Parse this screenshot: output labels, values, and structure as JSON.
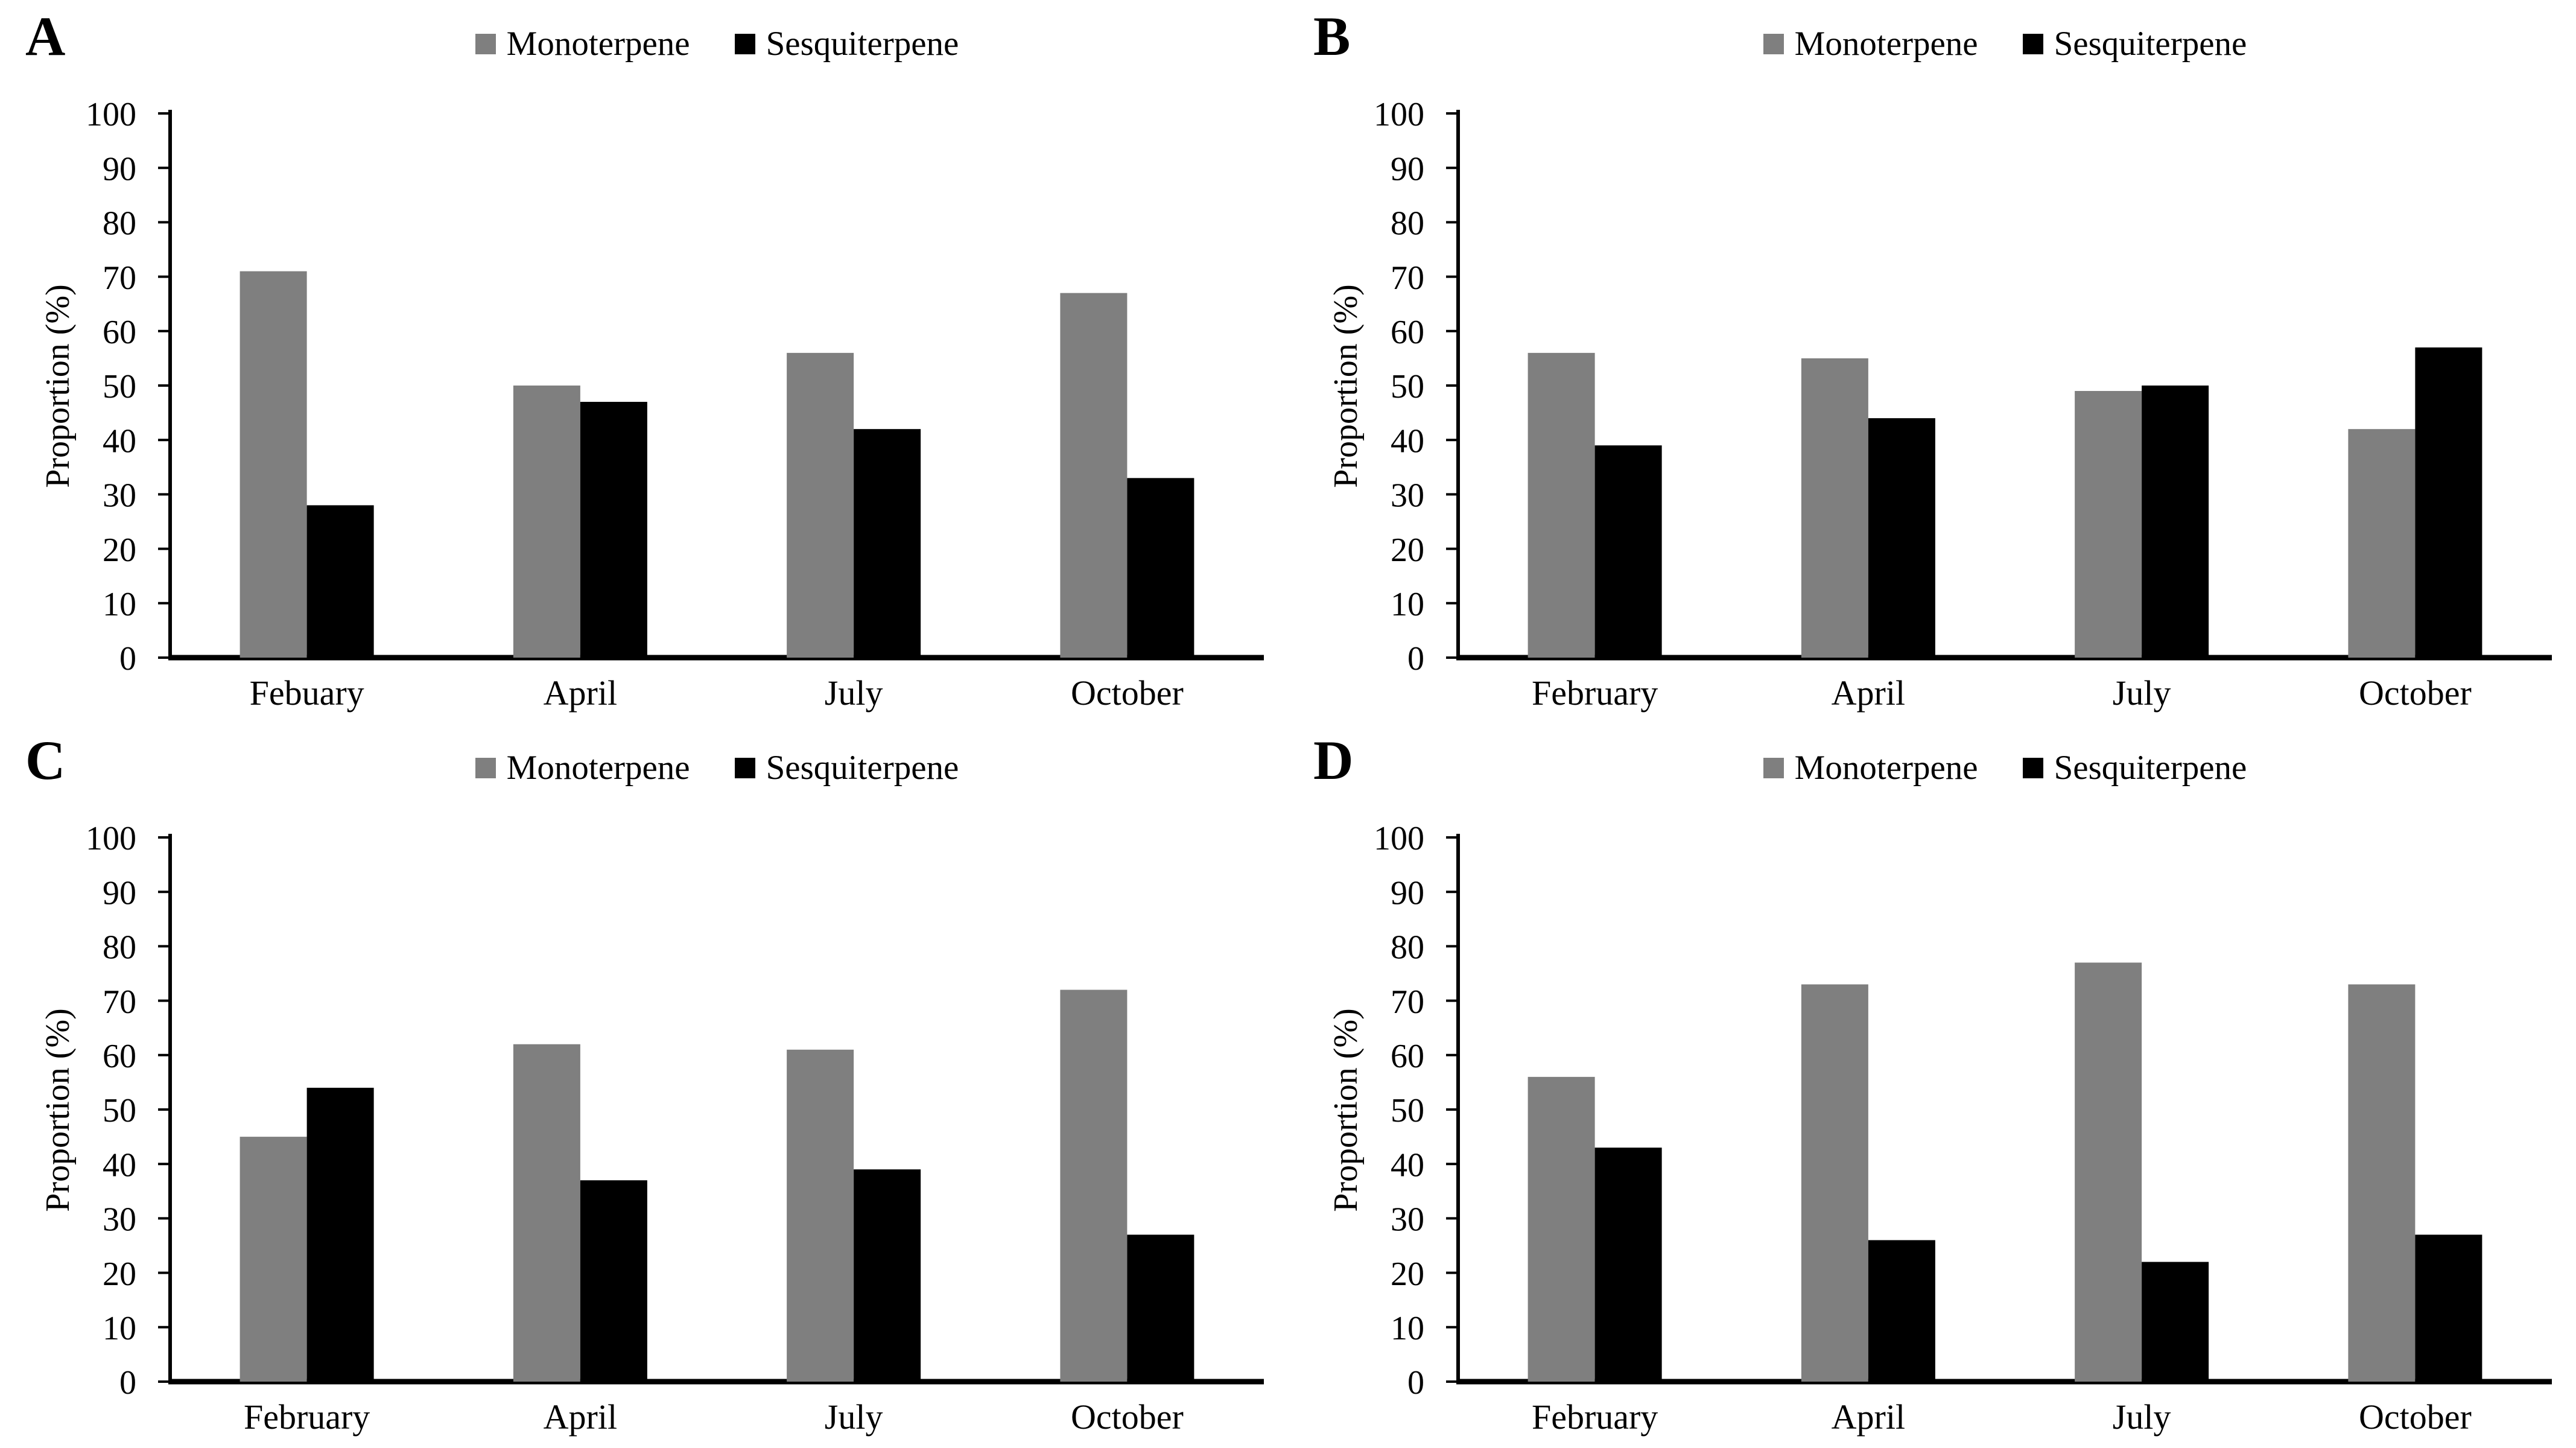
{
  "figure": {
    "y_axis_title": "Proportion (%)",
    "series_colors": {
      "monoterpene": "#7f7f7f",
      "sesquiterpene": "#000000"
    }
  },
  "chart_data": [
    {
      "type": "bar",
      "panel_label": "A",
      "title": "",
      "categories": [
        "Febuary",
        "April",
        "July",
        "October"
      ],
      "series": [
        {
          "name": "Monoterpene",
          "color": "#7f7f7f",
          "values": [
            71,
            50,
            56,
            67
          ]
        },
        {
          "name": "Sesquiterpene",
          "color": "#000000",
          "values": [
            28,
            47,
            42,
            33
          ]
        }
      ],
      "xlabel": "",
      "ylabel": "Proportion (%)",
      "ylim": [
        0,
        100
      ],
      "yticks": [
        0,
        10,
        20,
        30,
        40,
        50,
        60,
        70,
        80,
        90,
        100
      ],
      "grid": false,
      "legend_position": "top-center"
    },
    {
      "type": "bar",
      "panel_label": "B",
      "title": "",
      "categories": [
        "February",
        "April",
        "July",
        "October"
      ],
      "series": [
        {
          "name": "Monoterpene",
          "color": "#7f7f7f",
          "values": [
            56,
            55,
            49,
            42
          ]
        },
        {
          "name": "Sesquiterpene",
          "color": "#000000",
          "values": [
            39,
            44,
            50,
            57
          ]
        }
      ],
      "xlabel": "",
      "ylabel": "Proportion (%)",
      "ylim": [
        0,
        100
      ],
      "yticks": [
        0,
        10,
        20,
        30,
        40,
        50,
        60,
        70,
        80,
        90,
        100
      ],
      "grid": false,
      "legend_position": "top-center"
    },
    {
      "type": "bar",
      "panel_label": "C",
      "title": "",
      "categories": [
        "February",
        "April",
        "July",
        "October"
      ],
      "series": [
        {
          "name": "Monoterpene",
          "color": "#7f7f7f",
          "values": [
            45,
            62,
            61,
            72
          ]
        },
        {
          "name": "Sesquiterpene",
          "color": "#000000",
          "values": [
            54,
            37,
            39,
            27
          ]
        }
      ],
      "xlabel": "",
      "ylabel": "Proportion (%)",
      "ylim": [
        0,
        100
      ],
      "yticks": [
        0,
        10,
        20,
        30,
        40,
        50,
        60,
        70,
        80,
        90,
        100
      ],
      "grid": false,
      "legend_position": "top-center"
    },
    {
      "type": "bar",
      "panel_label": "D",
      "title": "",
      "categories": [
        "February",
        "April",
        "July",
        "October"
      ],
      "series": [
        {
          "name": "Monoterpene",
          "color": "#7f7f7f",
          "values": [
            56,
            73,
            77,
            73
          ]
        },
        {
          "name": "Sesquiterpene",
          "color": "#000000",
          "values": [
            43,
            26,
            22,
            27
          ]
        }
      ],
      "xlabel": "",
      "ylabel": "Proportion (%)",
      "ylim": [
        0,
        100
      ],
      "yticks": [
        0,
        10,
        20,
        30,
        40,
        50,
        60,
        70,
        80,
        90,
        100
      ],
      "grid": false,
      "legend_position": "top-center"
    }
  ]
}
